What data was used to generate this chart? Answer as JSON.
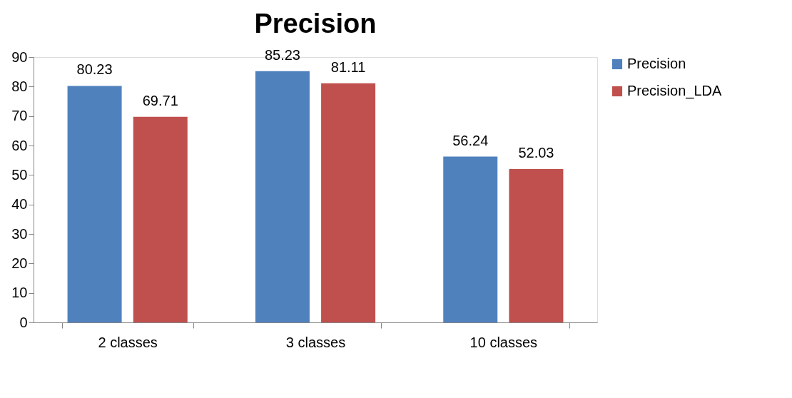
{
  "chart_data": {
    "type": "bar",
    "title": "Precision",
    "categories": [
      "2 classes",
      "3 classes",
      "10 classes"
    ],
    "series": [
      {
        "name": "Precision",
        "color": "#4f81bd",
        "values": [
          80.23,
          85.23,
          56.24
        ]
      },
      {
        "name": "Precision_LDA",
        "color": "#c0504d",
        "values": [
          69.71,
          81.11,
          52.03
        ]
      }
    ],
    "ylim": [
      0,
      90
    ],
    "yticks": [
      0,
      10,
      20,
      30,
      40,
      50,
      60,
      70,
      80,
      90
    ],
    "grid": false,
    "legend": "right",
    "data_labels": true
  }
}
